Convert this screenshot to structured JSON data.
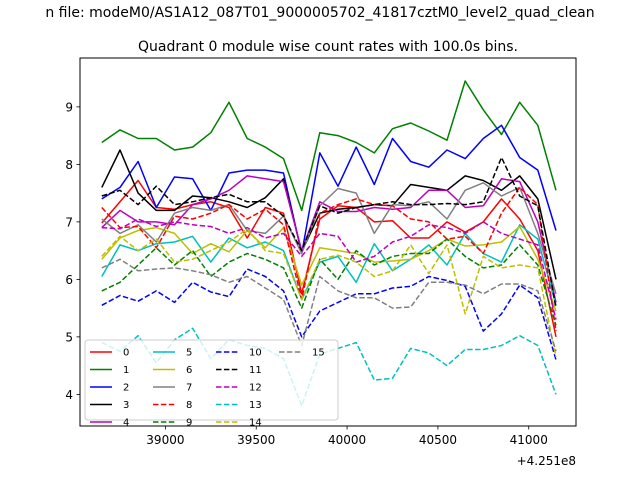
{
  "figure": {
    "suptitle": "n file: modeM0/AS1A12_087T01_9000005702_41817cztM0_level2_quad_clean",
    "x_offset_label": "+4.251e8"
  },
  "chart_data": {
    "type": "line",
    "title": "Quadrant 0 module wise count rates with 100.0s bins.",
    "xlabel": "",
    "ylabel": "",
    "xlim": [
      38530,
      41260
    ],
    "ylim": [
      3.45,
      9.85
    ],
    "x_ticks": [
      39000,
      39500,
      40000,
      40500,
      41000
    ],
    "y_ticks": [
      4,
      5,
      6,
      7,
      8,
      9
    ],
    "x_tick_labels": [
      "39000",
      "39500",
      "40000",
      "40500",
      "41000"
    ],
    "y_tick_labels": [
      "4",
      "5",
      "6",
      "7",
      "8",
      "9"
    ],
    "grid": false,
    "legend_position": "lower-left",
    "x": [
      38650,
      38750,
      38850,
      38950,
      39050,
      39150,
      39250,
      39350,
      39450,
      39550,
      39650,
      39750,
      39850,
      39950,
      40050,
      40150,
      40250,
      40350,
      40450,
      40550,
      40650,
      40750,
      40850,
      40950,
      41050,
      41150
    ],
    "series": [
      {
        "name": "0",
        "color": "#ff0000",
        "dash": "solid",
        "values": [
          6.98,
          7.35,
          7.72,
          7.25,
          7.22,
          7.3,
          7.35,
          7.25,
          6.72,
          7.25,
          7.15,
          5.75,
          7.05,
          7.28,
          7.25,
          7.0,
          7.02,
          6.72,
          6.72,
          7.0,
          6.82,
          7.0,
          7.4,
          7.05,
          6.5,
          5.0
        ]
      },
      {
        "name": "1",
        "color": "#008000",
        "dash": "solid",
        "values": [
          8.38,
          8.6,
          8.45,
          8.45,
          8.25,
          8.3,
          8.55,
          9.08,
          8.45,
          8.3,
          8.1,
          7.2,
          8.55,
          8.5,
          8.38,
          8.2,
          8.62,
          8.72,
          8.58,
          8.42,
          9.45,
          8.95,
          8.52,
          9.08,
          8.68,
          7.55
        ]
      },
      {
        "name": "2",
        "color": "#0000ff",
        "dash": "solid",
        "values": [
          7.4,
          7.6,
          8.05,
          7.25,
          7.78,
          7.75,
          7.2,
          7.85,
          7.9,
          7.9,
          7.85,
          6.45,
          8.2,
          7.62,
          8.3,
          7.65,
          8.45,
          8.05,
          7.95,
          8.25,
          8.1,
          8.45,
          8.68,
          8.12,
          7.9,
          6.85
        ]
      },
      {
        "name": "3",
        "color": "#000000",
        "dash": "solid",
        "values": [
          7.6,
          8.25,
          7.5,
          7.2,
          7.2,
          7.45,
          7.42,
          7.35,
          7.25,
          7.42,
          7.75,
          6.48,
          7.15,
          7.22,
          7.25,
          7.3,
          7.28,
          7.65,
          7.6,
          7.55,
          7.8,
          7.72,
          7.55,
          7.8,
          7.4,
          6.0
        ]
      },
      {
        "name": "4",
        "color": "#bf00bf",
        "dash": "solid",
        "values": [
          6.9,
          7.2,
          7.0,
          7.0,
          6.95,
          7.3,
          7.4,
          7.55,
          7.8,
          7.75,
          7.7,
          6.5,
          7.35,
          7.18,
          7.18,
          7.25,
          7.22,
          7.25,
          7.55,
          7.55,
          7.25,
          7.28,
          7.75,
          7.7,
          7.0,
          5.6
        ]
      },
      {
        "name": "5",
        "color": "#00bfbf",
        "dash": "solid",
        "values": [
          6.05,
          6.6,
          6.5,
          6.62,
          6.65,
          6.75,
          6.3,
          6.72,
          6.55,
          6.65,
          6.5,
          5.65,
          6.3,
          6.4,
          5.95,
          6.62,
          6.15,
          6.35,
          6.6,
          6.25,
          6.8,
          6.45,
          6.3,
          6.95,
          6.7,
          5.55
        ]
      },
      {
        "name": "6",
        "color": "#bfbf00",
        "dash": "solid",
        "values": [
          6.35,
          6.72,
          6.85,
          6.9,
          6.8,
          6.45,
          6.62,
          6.48,
          6.85,
          6.55,
          6.9,
          5.9,
          6.55,
          6.5,
          6.45,
          6.3,
          6.32,
          6.35,
          6.5,
          6.7,
          6.58,
          6.6,
          6.65,
          6.92,
          6.35,
          5.45
        ]
      },
      {
        "name": "7",
        "color": "#808080",
        "dash": "solid",
        "values": [
          7.05,
          6.8,
          6.95,
          6.65,
          7.15,
          7.25,
          7.2,
          7.3,
          6.85,
          6.8,
          7.1,
          6.45,
          7.28,
          7.58,
          7.5,
          6.8,
          7.3,
          7.28,
          7.35,
          7.05,
          7.55,
          7.68,
          7.45,
          7.6,
          6.8,
          5.75
        ]
      },
      {
        "name": "8",
        "color": "#ff0000",
        "dash": "dashed",
        "values": [
          7.25,
          6.9,
          6.92,
          6.55,
          7.1,
          7.05,
          7.15,
          7.3,
          7.05,
          7.22,
          6.95,
          5.65,
          7.15,
          7.3,
          7.4,
          7.3,
          7.28,
          7.05,
          7.0,
          6.7,
          6.75,
          6.45,
          7.15,
          7.6,
          7.3,
          5.1
        ]
      },
      {
        "name": "9",
        "color": "#008000",
        "dash": "dashed",
        "values": [
          5.8,
          5.95,
          6.25,
          6.55,
          6.25,
          6.5,
          6.05,
          6.3,
          6.45,
          6.35,
          6.2,
          5.5,
          6.35,
          6.0,
          6.5,
          6.25,
          6.4,
          6.45,
          6.45,
          6.7,
          6.4,
          6.2,
          6.25,
          6.6,
          6.25,
          5.2
        ]
      },
      {
        "name": "10",
        "color": "#0000ff",
        "dash": "dashed",
        "values": [
          5.55,
          5.72,
          5.62,
          5.8,
          5.6,
          5.95,
          5.78,
          5.7,
          6.18,
          6.05,
          5.8,
          5.0,
          5.45,
          5.6,
          5.75,
          5.75,
          5.85,
          5.88,
          6.05,
          5.98,
          5.88,
          5.1,
          5.4,
          5.9,
          5.68,
          4.6
        ]
      },
      {
        "name": "11",
        "color": "#000000",
        "dash": "dashed",
        "values": [
          7.45,
          7.55,
          7.3,
          7.62,
          7.3,
          7.35,
          7.42,
          7.48,
          7.35,
          7.35,
          7.1,
          6.5,
          7.28,
          7.15,
          7.25,
          7.3,
          7.35,
          7.3,
          7.3,
          7.32,
          7.3,
          7.35,
          8.12,
          7.45,
          7.28,
          5.5
        ]
      },
      {
        "name": "12",
        "color": "#bf00bf",
        "dash": "dashed",
        "values": [
          6.9,
          6.88,
          7.05,
          6.92,
          7.0,
          6.95,
          6.92,
          6.8,
          6.9,
          6.72,
          6.8,
          6.4,
          6.8,
          6.75,
          6.3,
          6.4,
          6.65,
          6.75,
          6.95,
          6.9,
          6.8,
          7.0,
          6.8,
          6.7,
          6.6,
          5.3
        ]
      },
      {
        "name": "13",
        "color": "#00bfbf",
        "dash": "dashed",
        "values": [
          4.9,
          4.75,
          5.02,
          4.55,
          4.95,
          5.15,
          4.62,
          4.95,
          4.85,
          4.8,
          4.62,
          3.8,
          4.7,
          4.8,
          4.9,
          4.25,
          4.28,
          4.8,
          4.72,
          4.5,
          4.78,
          4.78,
          4.85,
          5.02,
          4.85,
          4.0
        ]
      },
      {
        "name": "14",
        "color": "#bfbf00",
        "dash": "dashed",
        "values": [
          6.4,
          6.75,
          6.5,
          6.7,
          6.3,
          6.35,
          6.5,
          6.65,
          6.88,
          6.5,
          6.45,
          5.65,
          6.35,
          6.42,
          6.3,
          6.05,
          6.15,
          6.6,
          6.1,
          6.6,
          5.4,
          6.4,
          6.2,
          6.25,
          6.2,
          4.65
        ]
      },
      {
        "name": "15",
        "color": "#808080",
        "dash": "dashed",
        "values": [
          6.2,
          6.35,
          6.15,
          6.18,
          6.2,
          6.15,
          6.08,
          5.95,
          6.05,
          5.85,
          5.65,
          4.85,
          6.05,
          5.8,
          5.68,
          5.68,
          5.5,
          5.52,
          5.95,
          5.95,
          5.9,
          5.75,
          5.92,
          5.92,
          5.8,
          4.75
        ]
      }
    ]
  }
}
